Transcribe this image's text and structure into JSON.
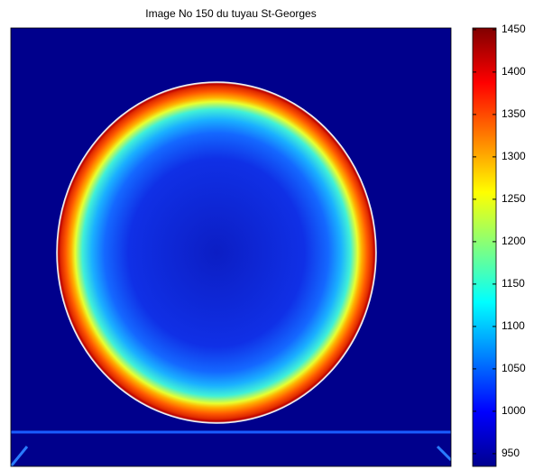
{
  "chart_data": {
    "type": "image",
    "title": "Image No 150 du tuyau St-Georges",
    "colormap": "jet",
    "clim": [
      935,
      1452
    ],
    "cticks": [
      950,
      1000,
      1050,
      1100,
      1150,
      1200,
      1250,
      1300,
      1350,
      1400,
      1450
    ]
  }
}
